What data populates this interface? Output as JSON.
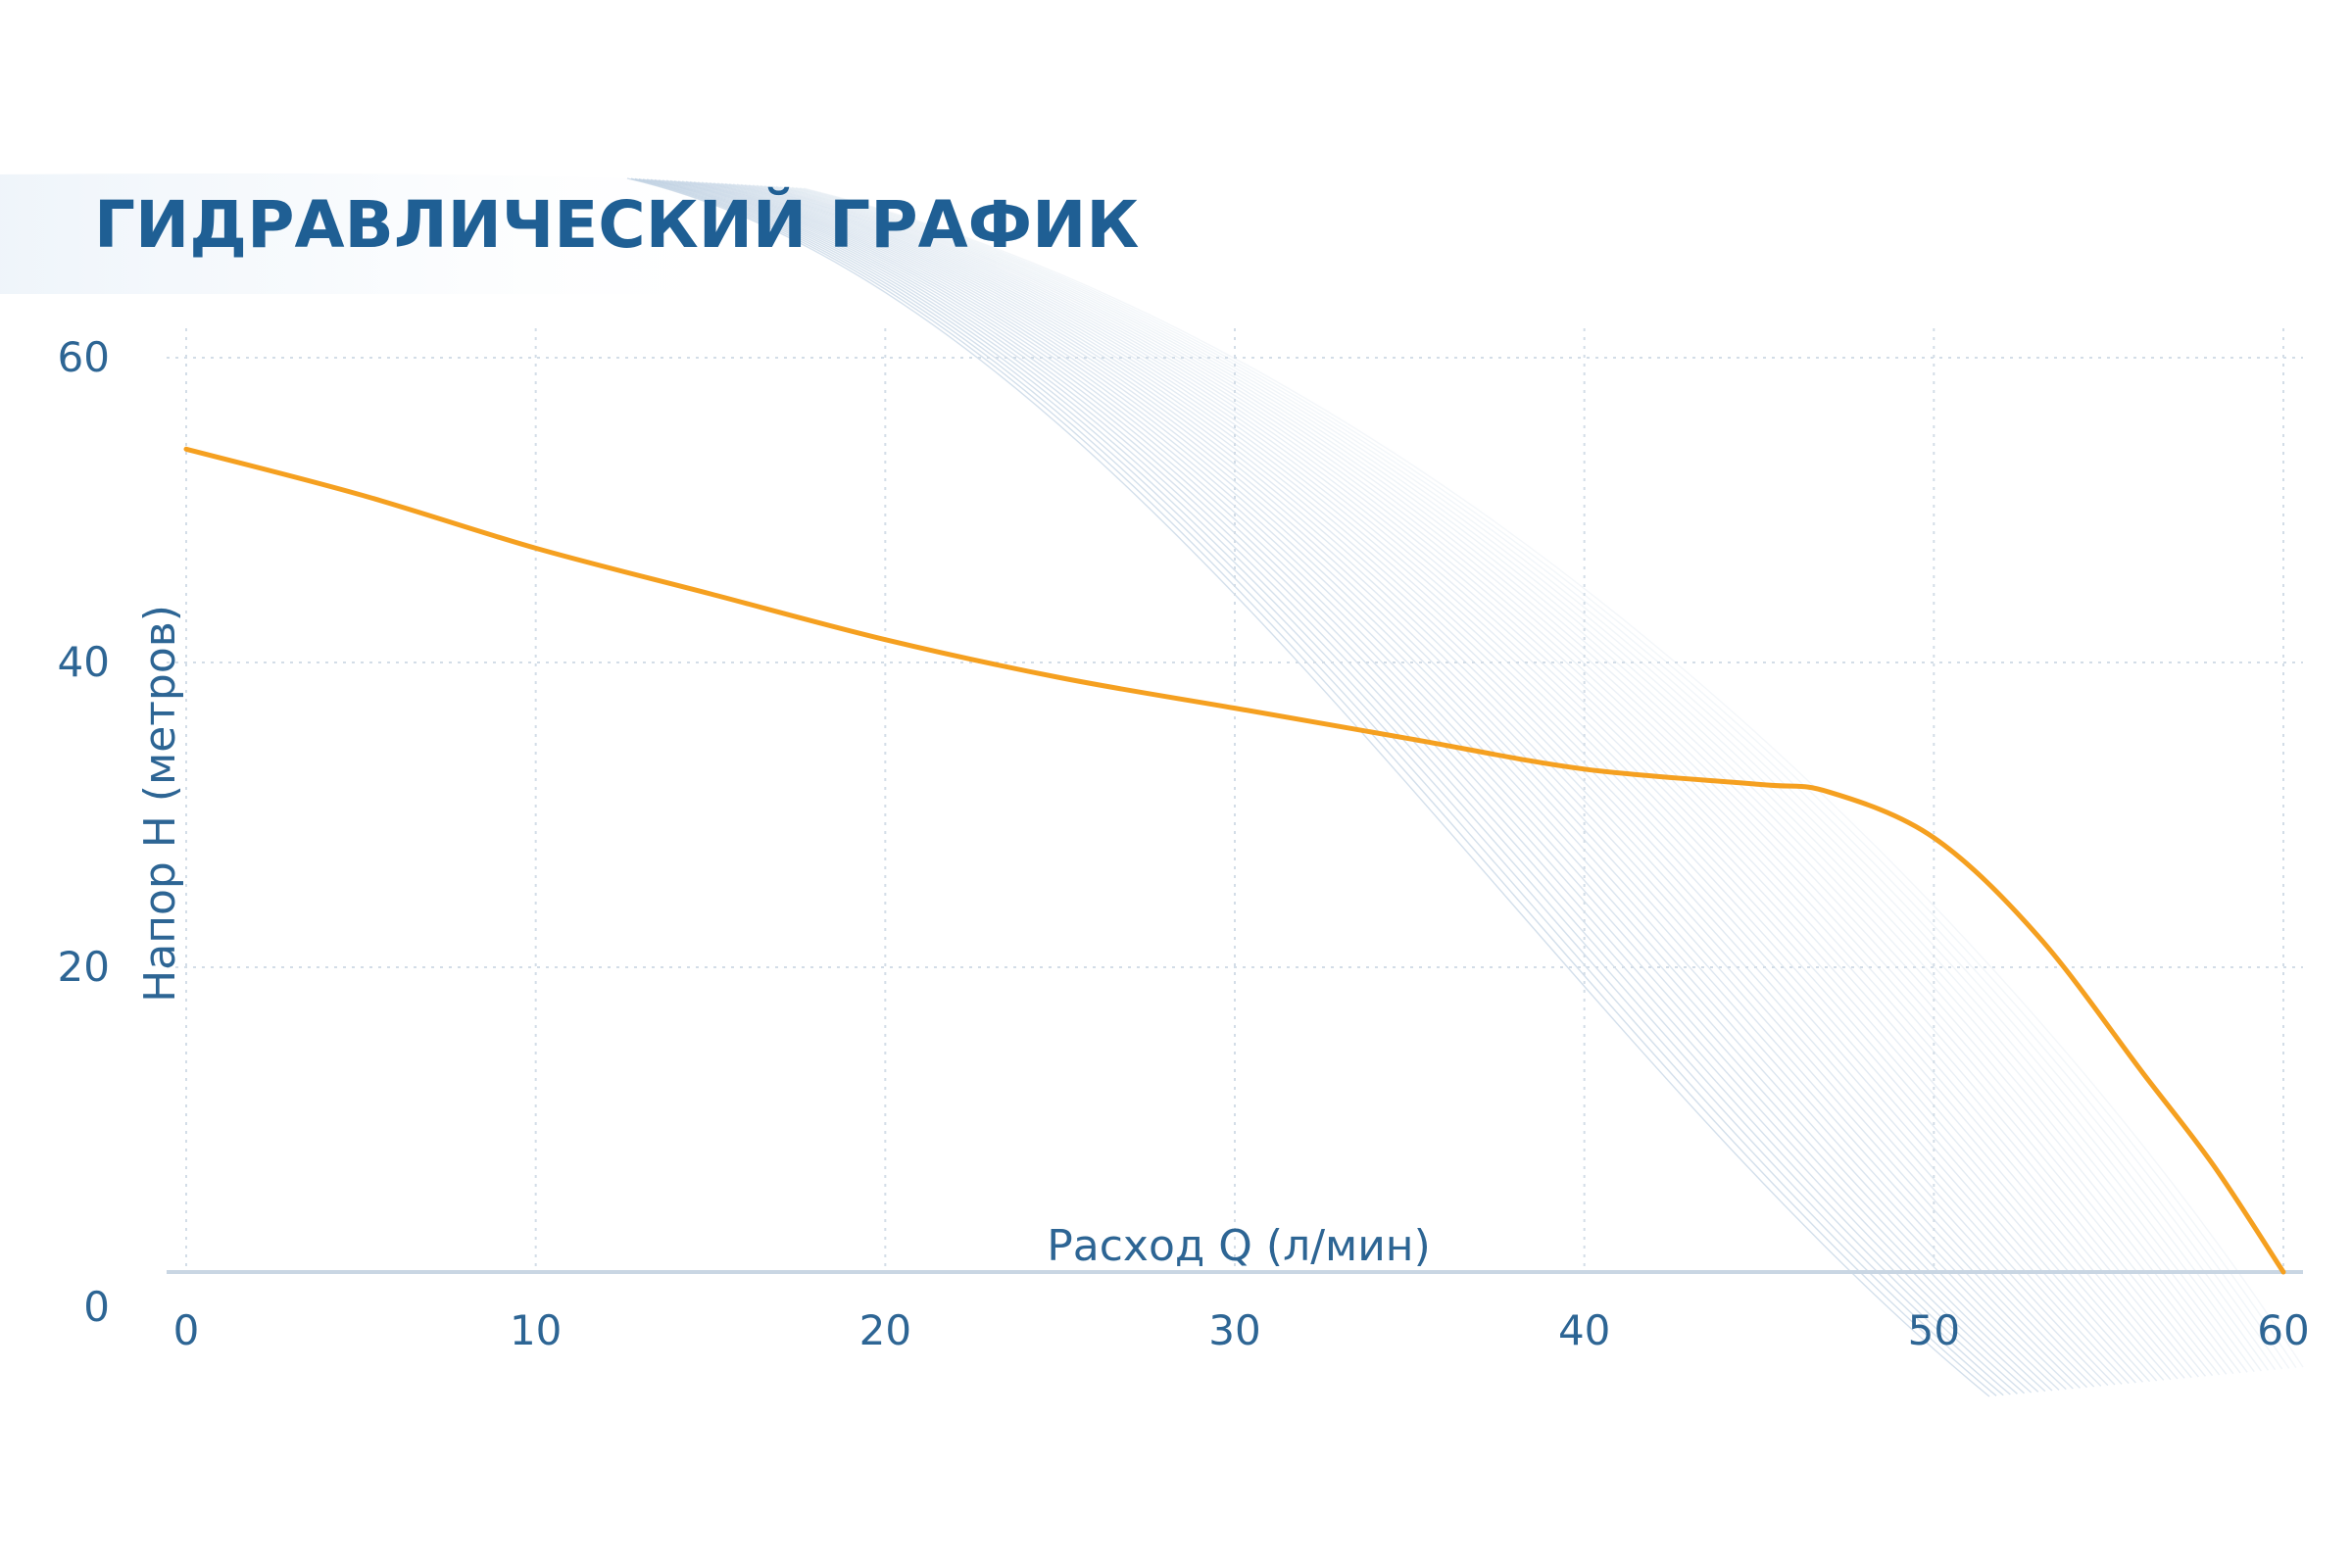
{
  "chart_data": {
    "type": "line",
    "title": "ГИДРАВЛИЧЕСКИЙ ГРАФИК",
    "xlabel": "Расход Q (л/мин)",
    "ylabel": "Напор H (метров)",
    "xlim": [
      0,
      60
    ],
    "ylim": [
      0,
      60
    ],
    "x_ticks": [
      0,
      10,
      20,
      30,
      40,
      50,
      60
    ],
    "y_ticks": [
      0,
      20,
      40,
      60
    ],
    "x_tick_labels": [
      "0",
      "10",
      "20",
      "30",
      "40",
      "50",
      "60"
    ],
    "y_tick_labels": [
      "0",
      "20",
      "40",
      "60"
    ],
    "grid": true,
    "series": [
      {
        "color": "#f5a020",
        "x": [
          0,
          5,
          10,
          15,
          20,
          25,
          30,
          35,
          40,
          45,
          47,
          50,
          53,
          56,
          58,
          60
        ],
        "y": [
          54,
          51,
          47.5,
          44.5,
          41.5,
          39,
          37,
          35,
          33,
          32,
          31.5,
          28.5,
          22,
          13,
          7,
          0
        ]
      }
    ]
  },
  "colors": {
    "title": "#1f5f94",
    "axis_text": "#2d6594",
    "curve": "#f5a020",
    "grid": "#d3dde7",
    "decor_waves": "#aec4da"
  }
}
